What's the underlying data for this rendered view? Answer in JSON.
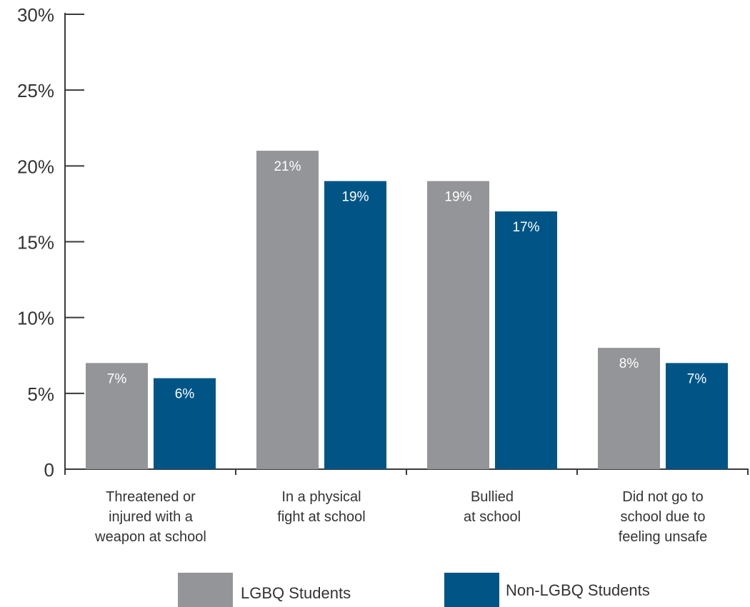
{
  "chart_data": {
    "type": "bar",
    "categories": [
      [
        "Threatened or",
        "injured with a",
        "weapon at school"
      ],
      [
        "In a physical",
        "fight at school"
      ],
      [
        "Bullied",
        "at school"
      ],
      [
        "Did not go to",
        "school due to",
        "feeling unsafe"
      ]
    ],
    "series": [
      {
        "name": "LGBQ Students",
        "color": "#939598",
        "values": [
          7,
          21,
          19,
          8
        ],
        "labels": [
          "7%",
          "21%",
          "19%",
          "8%"
        ]
      },
      {
        "name": "Non-LGBQ Students",
        "color": "#005586",
        "values": [
          6,
          19,
          17,
          7
        ],
        "labels": [
          "6%",
          "19%",
          "17%",
          "7%"
        ]
      }
    ],
    "yticks": [
      {
        "value": 0,
        "label": "0"
      },
      {
        "value": 5,
        "label": "5%"
      },
      {
        "value": 10,
        "label": "10%"
      },
      {
        "value": 15,
        "label": "15%"
      },
      {
        "value": 20,
        "label": "20%"
      },
      {
        "value": 25,
        "label": "25%"
      },
      {
        "value": 30,
        "label": "30%"
      }
    ],
    "ylim": [
      0,
      30
    ],
    "title": "",
    "xlabel": "",
    "ylabel": "",
    "legend_position": "bottom",
    "grid": false
  }
}
